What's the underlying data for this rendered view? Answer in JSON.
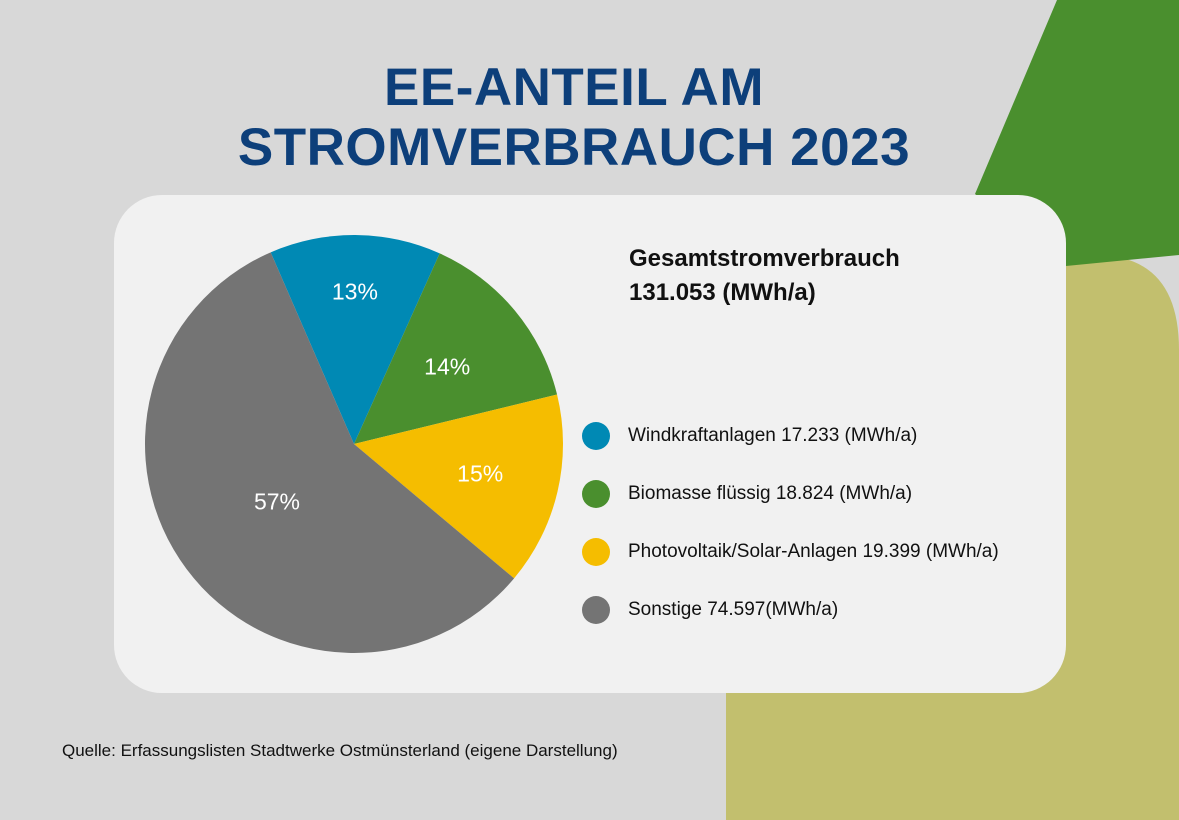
{
  "title_lines": [
    "EE-ANTEIL AM",
    "STROMVERBRAUCH 2023"
  ],
  "total": {
    "label": "Gesamtstromverbrauch",
    "value": "131.053 (MWh/a)"
  },
  "chart_data": {
    "type": "pie",
    "title": "EE-ANTEIL AM STROMVERBRAUCH 2023",
    "slices": [
      {
        "name": "Windkraftanlagen",
        "value": 17.233,
        "unit": "MWh/a",
        "percent_label": "13%",
        "color": "#0089b4",
        "legend_label": "Windkraftanlagen 17.233 (MWh/a)"
      },
      {
        "name": "Biomasse flüssig",
        "value": 18.824,
        "unit": "MWh/a",
        "percent_label": "14%",
        "color": "#4a8f2e",
        "legend_label": "Biomasse flüssig 18.824 (MWh/a)"
      },
      {
        "name": "Photovoltaik/Solar-Anlagen",
        "value": 19.399,
        "unit": "MWh/a",
        "percent_label": "15%",
        "color": "#f5bd00",
        "legend_label": "Photovoltaik/Solar-Anlagen 19.399 (MWh/a)"
      },
      {
        "name": "Sonstige",
        "value": 74.597,
        "unit": "MWh/a",
        "percent_label": "57%",
        "color": "#747474",
        "legend_label": "Sonstige 74.597(MWh/a)"
      }
    ],
    "legend_position": "right"
  },
  "source": "Quelle: Erfassungslisten Stadtwerke Ostmünsterland (eigene Darstellung)",
  "colors": {
    "background": "#d8d8d8",
    "title": "#0d3f7a",
    "deco_green": "#4a8f2e",
    "deco_olive": "#c2bf6e",
    "card": "#f1f1f1"
  }
}
